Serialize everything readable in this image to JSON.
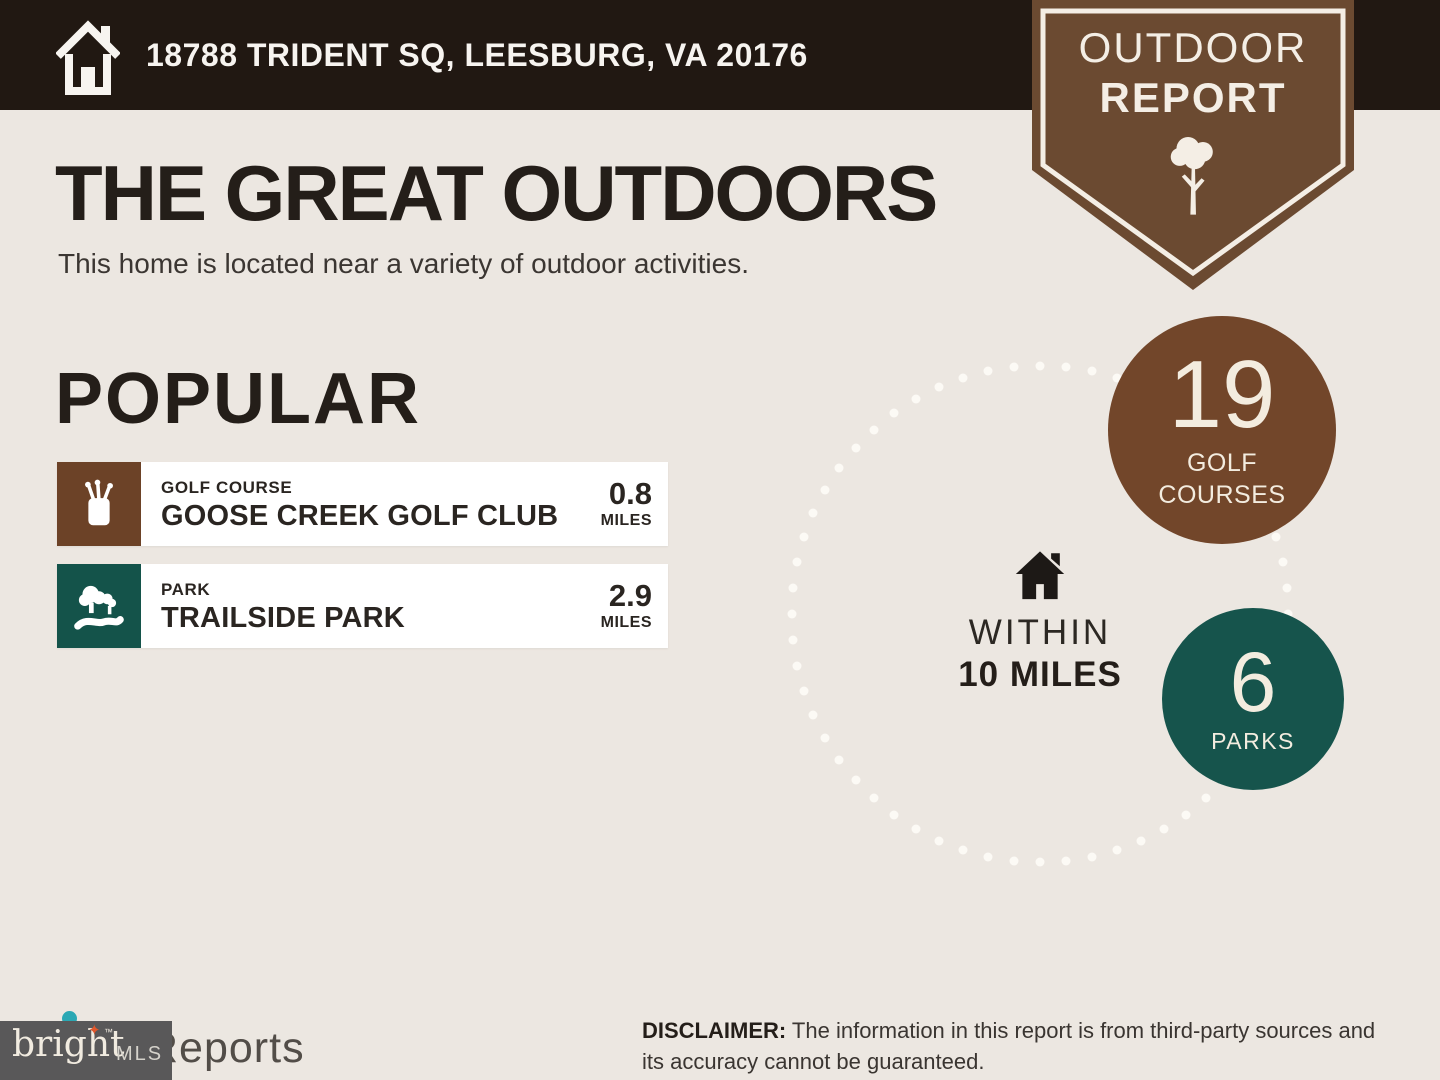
{
  "header": {
    "address": "18788 TRIDENT SQ, LEESBURG, VA 20176",
    "bar_color": "#211812",
    "home_icon": "home-outline-icon"
  },
  "ribbon": {
    "title_line1": "OUTDOOR",
    "title_line2": "REPORT",
    "icon": "tree-icon",
    "color": "#6B4A31"
  },
  "intro": {
    "title": "THE GREAT OUTDOORS",
    "subtitle": "This home is located near a variety of outdoor activities."
  },
  "popular": {
    "heading": "POPULAR",
    "items": [
      {
        "category": "GOLF COURSE",
        "name": "GOOSE CREEK GOLF CLUB",
        "distance": "0.8",
        "unit": "MILES",
        "icon": "golf-bag-icon",
        "icon_color": "#6C4227"
      },
      {
        "category": "PARK",
        "name": "TRAILSIDE PARK",
        "distance": "2.9",
        "unit": "MILES",
        "icon": "park-trees-icon",
        "icon_color": "#14534A"
      }
    ]
  },
  "radius": {
    "icon": "home-solid-icon",
    "label_line1": "WITHIN",
    "label_line2": "10 MILES",
    "stats": [
      {
        "value": "19",
        "label": "GOLF COURSES",
        "color": "#72462A"
      },
      {
        "value": "6",
        "label": "PARKS",
        "color": "#16544C"
      }
    ]
  },
  "footer": {
    "logo_overlay": {
      "brand": "bright",
      "trademark": "™",
      "suffix": "MLS",
      "box_color": "#595859",
      "star_color": "#E2572B"
    },
    "partial_logo": {
      "text": "Reports",
      "dot_color": "#2BA8B4"
    },
    "disclaimer_label": "DISCLAIMER:",
    "disclaimer_text": " The information in this report is from third-party sources and its accuracy cannot be guaranteed."
  }
}
